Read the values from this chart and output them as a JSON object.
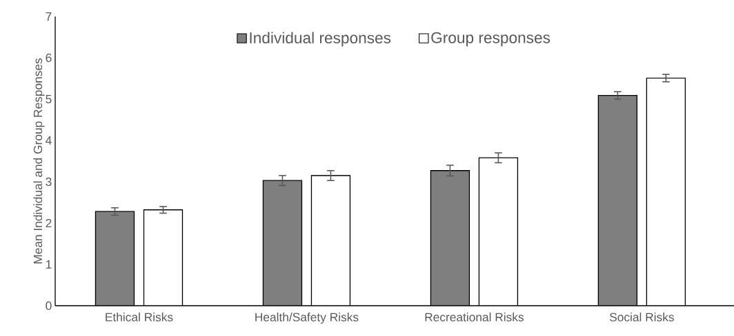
{
  "chart_data": {
    "type": "bar",
    "ylabel": "Mean Individual and Group Responses",
    "categories": [
      "Ethical Risks",
      "Health/Safety Risks",
      "Recreational Risks",
      "Social Risks"
    ],
    "series": [
      {
        "name": "Individual responses",
        "color": "#7f7f7f",
        "values": [
          2.28,
          3.03,
          3.27,
          5.09
        ],
        "errors": [
          0.09,
          0.12,
          0.13,
          0.09
        ]
      },
      {
        "name": "Group responses",
        "color": "#ffffff",
        "values": [
          2.32,
          3.15,
          3.58,
          5.51
        ],
        "errors": [
          0.08,
          0.12,
          0.12,
          0.09
        ]
      }
    ],
    "ylim": [
      0,
      7
    ],
    "yticks": [
      0,
      1,
      2,
      3,
      4,
      5,
      6,
      7
    ],
    "legend": "top",
    "grid": false
  }
}
